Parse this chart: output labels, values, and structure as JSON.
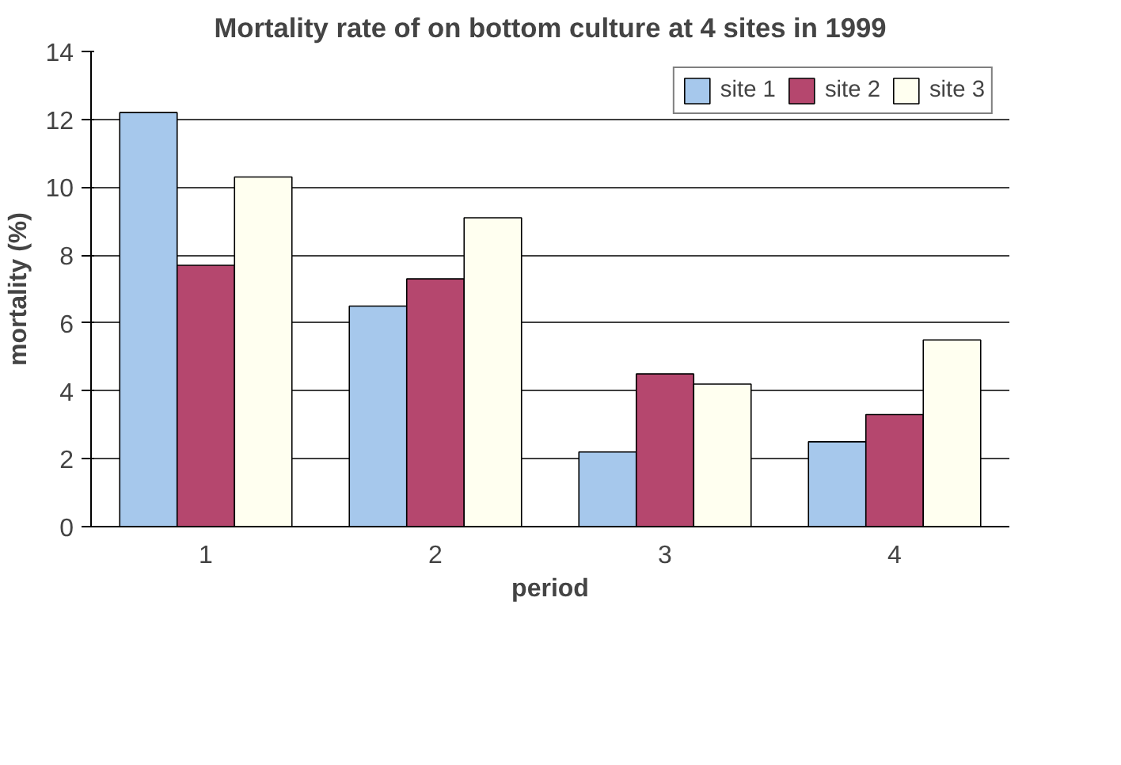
{
  "chart_data": {
    "type": "bar",
    "title": "Mortality rate of on bottom culture at 4 sites in 1999",
    "xlabel": "period",
    "ylabel": "mortality (%)",
    "categories": [
      "1",
      "2",
      "3",
      "4"
    ],
    "series": [
      {
        "name": "site 1",
        "color": "#a6c8ec",
        "values": [
          12.2,
          6.5,
          2.2,
          2.5
        ]
      },
      {
        "name": "site 2",
        "color": "#b5476e",
        "values": [
          7.7,
          7.3,
          4.5,
          3.3
        ]
      },
      {
        "name": "site 3",
        "color": "#fffff0",
        "values": [
          10.3,
          9.1,
          4.2,
          5.5
        ]
      }
    ],
    "ylim": [
      0,
      14
    ],
    "yticks": [
      0,
      2,
      4,
      6,
      8,
      10,
      12,
      14
    ],
    "grid": "y",
    "legend": "top right"
  }
}
